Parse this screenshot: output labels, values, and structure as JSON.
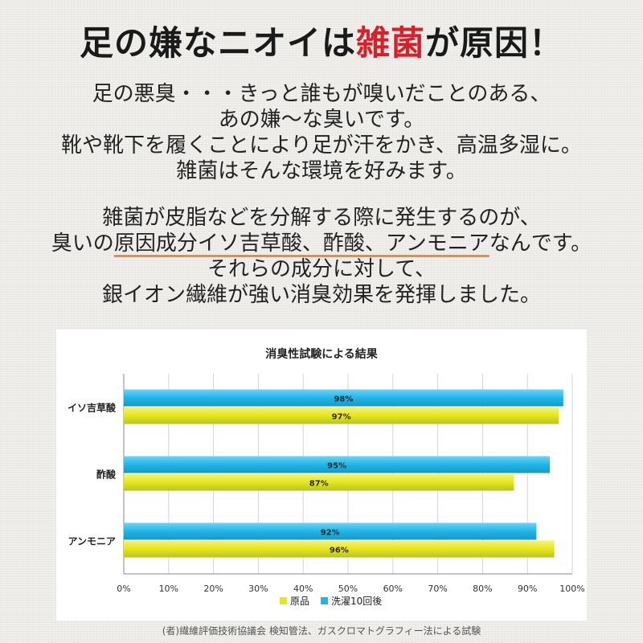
{
  "headline": {
    "before": "足の嫌なニオイは",
    "highlight": "雑菌",
    "after": "が原因！"
  },
  "paragraph1": [
    "足の悪臭・・・きっと誰もが嗅いだことのある、",
    "あの嫌〜な臭いです。",
    "靴や靴下を履くことにより足が汗をかき、高温多湿に。",
    "雑菌はそんな環境を好みます。"
  ],
  "paragraph2": {
    "line1": "雑菌が皮脂などを分解する際に発生するのが、",
    "line2_before": "臭いの",
    "line2_underlined": "原因成分イソ吉草酸、酢酸、アンモニア",
    "line2_after": "なんです。",
    "line3": "それらの成分に対して、",
    "line4": "銀イオン繊維が強い消臭効果を発揮しました。"
  },
  "chart_data": {
    "type": "bar",
    "orientation": "horizontal",
    "title": "消臭性試験による結果",
    "categories": [
      "イソ吉草酸",
      "酢酸",
      "アンモニア"
    ],
    "series": [
      {
        "name": "洗濯10回後",
        "values": [
          98,
          95,
          92
        ],
        "color": "#1fb6e8"
      },
      {
        "name": "原品",
        "values": [
          97,
          87,
          96
        ],
        "color": "#e6e61e"
      }
    ],
    "value_labels": {
      "洗濯10回後": [
        "98%",
        "95%",
        "92%"
      ],
      "原品": [
        "97%",
        "87%",
        "96%"
      ]
    },
    "xlim": [
      0,
      100
    ],
    "x_tick_labels": [
      "0%",
      "10%",
      "20%",
      "30%",
      "40%",
      "50%",
      "60%",
      "70%",
      "80%",
      "90%",
      "100%"
    ],
    "grid": true,
    "legend_placement": "bottom",
    "legend_order": [
      "原品",
      "洗濯10回後"
    ]
  },
  "source_note": "(者)繊維評価技術協議会 検知管法、ガスクロマトグラフィー法による試験"
}
